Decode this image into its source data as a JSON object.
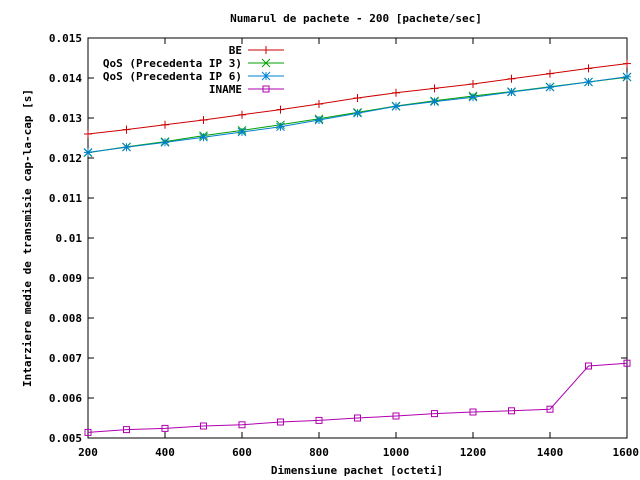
{
  "chart_data": {
    "type": "line",
    "title": "Numarul de pachete - 200 [pachete/sec]",
    "xlabel": "Dimensiune pachet [octeti]",
    "ylabel": "Intarziere medie de transmisie cap-la-cap [s]",
    "xlim": [
      200,
      1600
    ],
    "ylim": [
      0.005,
      0.015
    ],
    "xticks": [
      "200",
      "400",
      "600",
      "800",
      "1000",
      "1200",
      "1400",
      "1600"
    ],
    "yticks": [
      "0.005",
      "0.006",
      "0.007",
      "0.008",
      "0.009",
      "0.01",
      "0.011",
      "0.012",
      "0.013",
      "0.014",
      "0.015"
    ],
    "grid": false,
    "legend_position": "top-right",
    "x": [
      200,
      300,
      400,
      500,
      600,
      700,
      800,
      900,
      1000,
      1100,
      1200,
      1300,
      1400,
      1500,
      1600
    ],
    "series": [
      {
        "name": "BE",
        "color": "#cc0000",
        "marker": "plus",
        "values": [
          0.0126,
          0.01271,
          0.01283,
          0.01295,
          0.01308,
          0.01321,
          0.01335,
          0.0135,
          0.01363,
          0.01374,
          0.01385,
          0.01398,
          0.01411,
          0.01424,
          0.01436
        ]
      },
      {
        "name": "QoS (Precedenta IP 3)",
        "color": "#00a000",
        "marker": "cross",
        "values": [
          0.01213,
          0.01228,
          0.01241,
          0.01256,
          0.01269,
          0.01283,
          0.01298,
          0.01314,
          0.0133,
          0.01343,
          0.01355,
          0.01366,
          0.01378,
          0.0139,
          0.01402
        ]
      },
      {
        "name": "QoS (Precedenta IP 6)",
        "color": "#0080d0",
        "marker": "star",
        "values": [
          0.01214,
          0.01227,
          0.01239,
          0.01252,
          0.01265,
          0.01278,
          0.01295,
          0.01312,
          0.01329,
          0.01341,
          0.01352,
          0.01365,
          0.01377,
          0.0139,
          0.01403
        ]
      },
      {
        "name": "INAME",
        "color": "#b000b0",
        "marker": "square",
        "values": [
          0.00514,
          0.00521,
          0.00524,
          0.0053,
          0.00533,
          0.0054,
          0.00544,
          0.0055,
          0.00555,
          0.00561,
          0.00565,
          0.00568,
          0.00572,
          0.0068,
          0.00687
        ]
      }
    ]
  }
}
